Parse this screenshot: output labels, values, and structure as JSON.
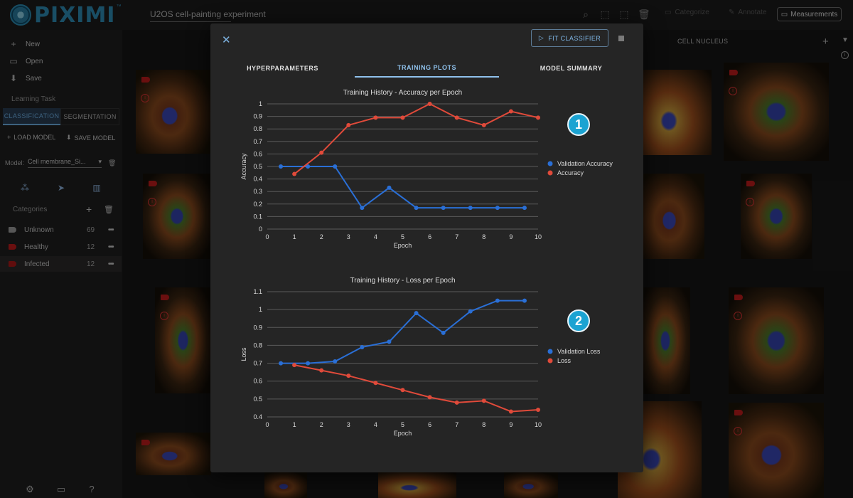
{
  "app": {
    "logo_text": "PIXIMI",
    "logo_tm": "™",
    "project_name": "U2OS cell-painting experiment"
  },
  "toolbar": {
    "categorize_label": "Categorize",
    "annotate_label": "Annotate",
    "measurements_label": "Measurements"
  },
  "sidebar": {
    "menu": [
      {
        "label": "New",
        "icon": "plus-icon"
      },
      {
        "label": "Open",
        "icon": "folder-icon"
      },
      {
        "label": "Save",
        "icon": "download-icon"
      }
    ],
    "learning_task_label": "Learning Task",
    "task_tabs": [
      "CLASSIFICATION",
      "SEGMENTATION"
    ],
    "load_model_label": "LOAD MODEL",
    "save_model_label": "SAVE MODEL",
    "model_label": "Model:",
    "model_value": "Cell membrane_Si...",
    "categories_label": "Categories",
    "categories": [
      {
        "name": "Unknown",
        "count": "69",
        "color": "#9e9e9e"
      },
      {
        "name": "Healthy",
        "count": "12",
        "color": "#c21d1d"
      },
      {
        "name": "Infected",
        "count": "12",
        "color": "#b01818"
      }
    ]
  },
  "grid": {
    "column_header": "CELL NUCLEUS"
  },
  "dialog": {
    "fit_label": "FIT CLASSIFIER",
    "tabs": [
      "HYPERPARAMETERS",
      "TRAINING PLOTS",
      "MODEL SUMMARY"
    ],
    "markers": [
      "1",
      "2"
    ]
  },
  "chart_data": [
    {
      "type": "line",
      "title": "Training History - Accuracy per Epoch",
      "xlabel": "Epoch",
      "ylabel": "Accuracy",
      "xlim": [
        0,
        10
      ],
      "ylim": [
        0,
        1
      ],
      "xticks": [
        "0",
        "1",
        "2",
        "3",
        "4",
        "5",
        "6",
        "7",
        "8",
        "9",
        "10"
      ],
      "yticks": [
        "0",
        "0.1",
        "0.2",
        "0.3",
        "0.4",
        "0.5",
        "0.6",
        "0.7",
        "0.8",
        "0.9",
        "1"
      ],
      "legend": "right",
      "series": [
        {
          "name": "Validation Accuracy",
          "color": "#2a6fd6",
          "x": [
            0.5,
            1.5,
            2.5,
            3.5,
            4.5,
            5.5,
            6.5,
            7.5,
            8.5,
            9.5
          ],
          "y": [
            0.5,
            0.5,
            0.5,
            0.17,
            0.33,
            0.17,
            0.17,
            0.17,
            0.17,
            0.17
          ]
        },
        {
          "name": "Accuracy",
          "color": "#e04a3a",
          "x": [
            1,
            2,
            3,
            4,
            5,
            6,
            7,
            8,
            9,
            10
          ],
          "y": [
            0.44,
            0.61,
            0.83,
            0.89,
            0.89,
            1.0,
            0.89,
            0.83,
            0.94,
            0.89
          ]
        }
      ]
    },
    {
      "type": "line",
      "title": "Training History - Loss per Epoch",
      "xlabel": "Epoch",
      "ylabel": "Loss",
      "xlim": [
        0,
        10
      ],
      "ylim": [
        0.4,
        1.1
      ],
      "xticks": [
        "0",
        "1",
        "2",
        "3",
        "4",
        "5",
        "6",
        "7",
        "8",
        "9",
        "10"
      ],
      "yticks": [
        "0.4",
        "0.5",
        "0.6",
        "0.7",
        "0.8",
        "0.9",
        "1",
        "1.1"
      ],
      "legend": "right",
      "series": [
        {
          "name": "Validation Loss",
          "color": "#2a6fd6",
          "x": [
            0.5,
            1.5,
            2.5,
            3.5,
            4.5,
            5.5,
            6.5,
            7.5,
            8.5,
            9.5
          ],
          "y": [
            0.7,
            0.7,
            0.71,
            0.79,
            0.82,
            0.98,
            0.87,
            0.99,
            1.05,
            1.05
          ]
        },
        {
          "name": "Loss",
          "color": "#e04a3a",
          "x": [
            1,
            2,
            3,
            4,
            5,
            6,
            7,
            8,
            9,
            10
          ],
          "y": [
            0.69,
            0.66,
            0.63,
            0.59,
            0.55,
            0.51,
            0.48,
            0.49,
            0.43,
            0.44
          ]
        }
      ]
    }
  ]
}
